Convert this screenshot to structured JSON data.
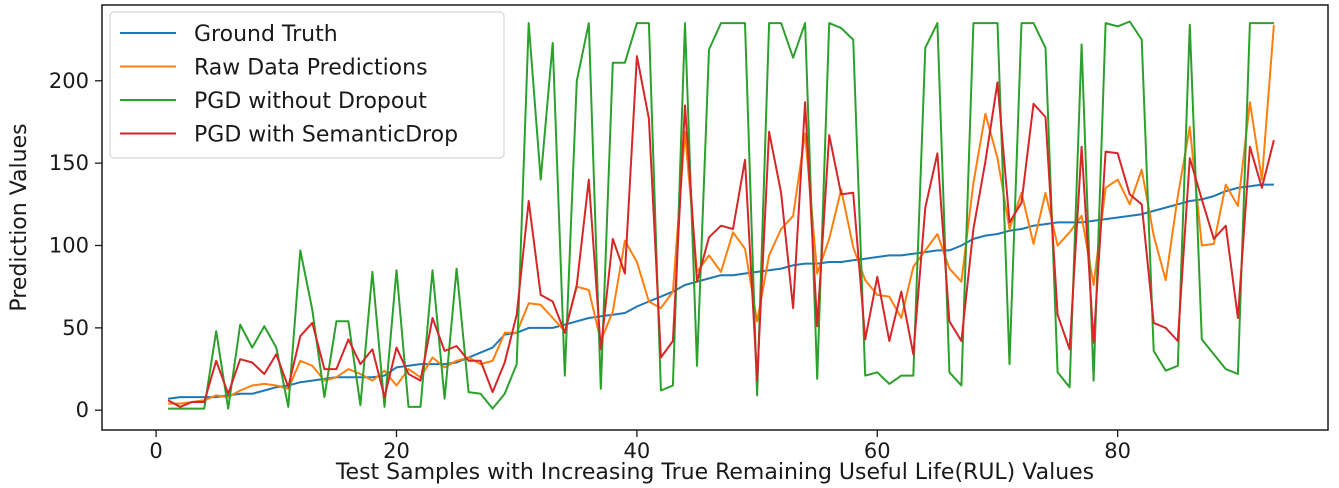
{
  "chart_data": {
    "type": "line",
    "title": "",
    "xlabel": "Test Samples with Increasing True Remaining Useful Life(RUL) Values",
    "ylabel": "Prediction Values",
    "xlim": [
      -4.5,
      97.5
    ],
    "ylim": [
      -12,
      246
    ],
    "xticks": [
      0,
      20,
      40,
      60,
      80
    ],
    "yticks": [
      0,
      50,
      100,
      150,
      200
    ],
    "grid": false,
    "legend_position": "upper-left",
    "x": [
      1,
      2,
      3,
      4,
      5,
      6,
      7,
      8,
      9,
      10,
      11,
      12,
      13,
      14,
      15,
      16,
      17,
      18,
      19,
      20,
      21,
      22,
      23,
      24,
      25,
      26,
      27,
      28,
      29,
      30,
      31,
      32,
      33,
      34,
      35,
      36,
      37,
      38,
      39,
      40,
      41,
      42,
      43,
      44,
      45,
      46,
      47,
      48,
      49,
      50,
      51,
      52,
      53,
      54,
      55,
      56,
      57,
      58,
      59,
      60,
      61,
      62,
      63,
      64,
      65,
      66,
      67,
      68,
      69,
      70,
      71,
      72,
      73,
      74,
      75,
      76,
      77,
      78,
      79,
      80,
      81,
      82,
      83,
      84,
      85,
      86,
      87,
      88,
      89,
      90,
      91,
      92,
      93
    ],
    "series": [
      {
        "name": "Ground Truth",
        "color": "#1f77b4",
        "values": [
          7,
          8,
          8,
          8,
          8,
          9,
          10,
          10,
          12,
          14,
          15,
          17,
          18,
          19,
          20,
          20,
          20,
          20,
          21,
          26,
          27,
          28,
          28,
          28,
          29,
          32,
          35,
          38,
          46,
          47,
          50,
          50,
          50,
          52,
          54,
          56,
          57,
          58,
          59,
          63,
          66,
          69,
          72,
          76,
          78,
          80,
          82,
          82,
          83,
          84,
          85,
          86,
          88,
          89,
          89,
          90,
          90,
          91,
          92,
          93,
          94,
          94,
          95,
          96,
          97,
          97,
          100,
          104,
          106,
          107,
          109,
          110,
          112,
          113,
          114,
          114,
          114,
          115,
          116,
          117,
          118,
          119,
          121,
          123,
          125,
          127,
          128,
          130,
          133,
          135,
          136,
          137,
          137
        ]
      },
      {
        "name": "Raw Data Predictions",
        "color": "#ff7f0e",
        "values": [
          4,
          4,
          5,
          6,
          9,
          8,
          12,
          15,
          16,
          15,
          13,
          30,
          27,
          18,
          20,
          25,
          22,
          18,
          24,
          15,
          25,
          20,
          32,
          26,
          30,
          32,
          28,
          30,
          47,
          47,
          65,
          64,
          56,
          48,
          75,
          73,
          42,
          60,
          103,
          90,
          66,
          62,
          72,
          169,
          84,
          94,
          84,
          108,
          98,
          54,
          94,
          110,
          118,
          168,
          83,
          104,
          134,
          99,
          79,
          70,
          69,
          56,
          87,
          97,
          107,
          86,
          78,
          138,
          180,
          153,
          110,
          132,
          101,
          132,
          100,
          108,
          118,
          76,
          135,
          140,
          125,
          146,
          106,
          79,
          130,
          172,
          100,
          101,
          137,
          124,
          187,
          140,
          234
        ]
      },
      {
        "name": "PGD without Dropout",
        "color": "#2ca02c",
        "values": [
          1,
          1,
          1,
          1,
          48,
          1,
          52,
          38,
          51,
          38,
          2,
          97,
          61,
          8,
          54,
          54,
          3,
          84,
          2,
          85,
          2,
          2,
          85,
          7,
          86,
          11,
          10,
          1,
          10,
          28,
          235,
          140,
          223,
          21,
          200,
          235,
          13,
          211,
          211,
          235,
          235,
          12,
          15,
          235,
          27,
          219,
          235,
          235,
          235,
          9,
          235,
          235,
          214,
          235,
          19,
          235,
          232,
          225,
          21,
          23,
          16,
          21,
          21,
          220,
          235,
          23,
          15,
          235,
          235,
          235,
          28,
          235,
          235,
          220,
          23,
          14,
          222,
          18,
          235,
          233,
          236,
          225,
          36,
          24,
          27,
          234,
          43,
          34,
          25,
          22,
          235,
          235,
          235
        ]
      },
      {
        "name": "PGD with SemanticDrop",
        "color": "#d62728",
        "values": [
          6,
          2,
          5,
          5,
          30,
          10,
          31,
          29,
          22,
          34,
          14,
          45,
          53,
          25,
          25,
          43,
          28,
          37,
          8,
          38,
          22,
          18,
          56,
          36,
          39,
          30,
          30,
          11,
          29,
          58,
          127,
          70,
          66,
          47,
          76,
          140,
          37,
          104,
          83,
          215,
          177,
          32,
          42,
          185,
          78,
          105,
          112,
          110,
          152,
          18,
          169,
          132,
          62,
          187,
          51,
          167,
          131,
          132,
          43,
          81,
          42,
          72,
          34,
          123,
          156,
          54,
          42,
          110,
          151,
          199,
          114,
          126,
          186,
          178,
          58,
          37,
          160,
          41,
          157,
          156,
          131,
          125,
          53,
          50,
          42,
          153,
          128,
          104,
          112,
          56,
          160,
          135,
          164
        ]
      }
    ]
  }
}
